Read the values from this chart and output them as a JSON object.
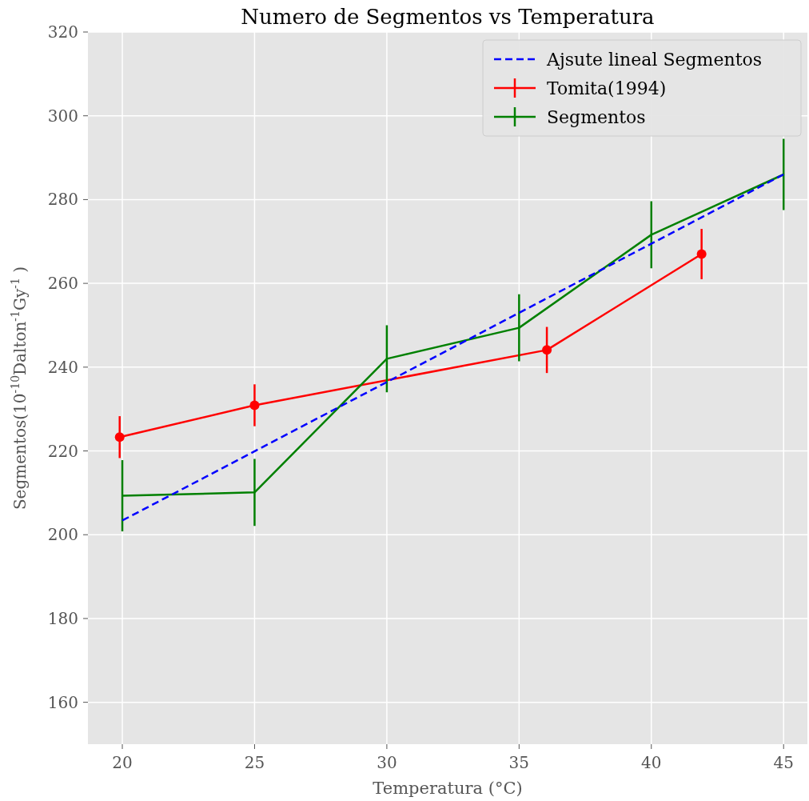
{
  "chart_data": {
    "type": "line",
    "title": "Numero de Segmentos vs Temperatura",
    "xlabel": "Temperatura (°C)",
    "ylabel": "Segmentos(10$^{-10}$Dalton$^{-1}$Gy$^{-1}$ )",
    "xlim": [
      18.7,
      45.9
    ],
    "ylim": [
      150,
      320
    ],
    "xticks": [
      20,
      25,
      30,
      35,
      40,
      45
    ],
    "yticks": [
      160,
      180,
      200,
      220,
      240,
      260,
      280,
      300,
      320
    ],
    "grid": true,
    "legend": "top right",
    "series": [
      {
        "name": "Ajsute lineal Segmentos",
        "color": "#0000ff",
        "line_style": "dashed",
        "marker": "none",
        "x": [
          20,
          45
        ],
        "values": [
          203.4,
          286.0
        ]
      },
      {
        "name": "Tomita(1994)",
        "color": "#ff0000",
        "line_style": "solid",
        "marker": "circle",
        "x": [
          19.9,
          25,
          36.05,
          41.9
        ],
        "values": [
          223.3,
          230.9,
          244.1,
          267.0
        ],
        "errors": [
          5,
          5,
          5.5,
          6
        ]
      },
      {
        "name": "Segmentos",
        "color": "#008000",
        "line_style": "solid",
        "marker": "none",
        "x": [
          20,
          25,
          30,
          35,
          40,
          45
        ],
        "values": [
          209.3,
          210.1,
          242.0,
          249.4,
          271.6,
          286.0
        ],
        "errors": [
          8.5,
          8,
          8,
          8,
          8,
          8.5
        ]
      }
    ]
  }
}
